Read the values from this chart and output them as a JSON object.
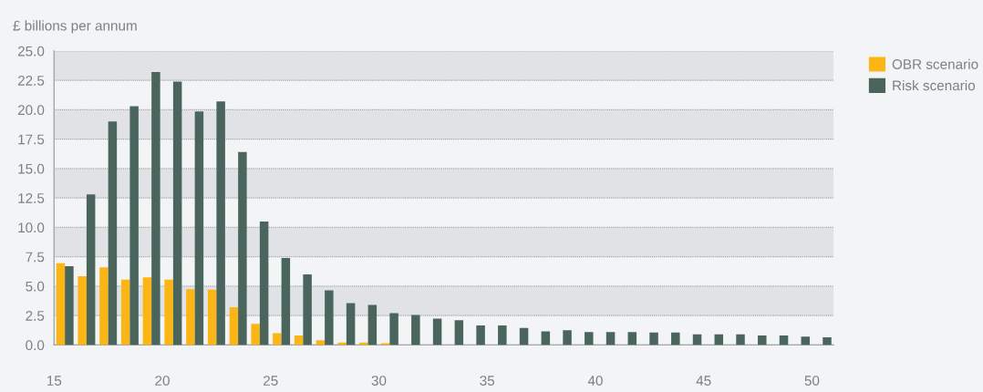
{
  "chart_data": {
    "type": "bar",
    "ylabel": "£ billions per annum",
    "x": [
      15.5,
      16.5,
      17.5,
      18.5,
      19.5,
      20.5,
      21.5,
      22.5,
      23.5,
      24.5,
      25.5,
      26.5,
      27.5,
      28.5,
      29.5,
      30.5,
      31.5,
      32.5,
      33.5,
      34.5,
      35.5,
      36.5,
      37.5,
      38.5,
      39.5,
      40.5,
      41.5,
      42.5,
      43.5,
      44.5,
      45.5,
      46.5,
      47.5,
      48.5,
      49.5,
      50.5
    ],
    "series": [
      {
        "name": "OBR scenario",
        "color": "#fbb616",
        "values": [
          6.95,
          5.85,
          6.6,
          5.55,
          5.75,
          5.55,
          4.75,
          4.7,
          3.2,
          1.8,
          1.0,
          0.8,
          0.4,
          0.2,
          0.2,
          0.15,
          null,
          null,
          null,
          null,
          null,
          null,
          null,
          null,
          null,
          null,
          null,
          null,
          null,
          null,
          null,
          null,
          null,
          null,
          null,
          null
        ]
      },
      {
        "name": "Risk scenario",
        "color": "#4a665c",
        "values": [
          6.7,
          12.8,
          19.0,
          20.3,
          23.2,
          22.4,
          19.85,
          20.7,
          16.4,
          10.5,
          7.4,
          6.0,
          4.65,
          3.55,
          3.4,
          2.7,
          2.55,
          2.25,
          2.1,
          1.65,
          1.65,
          1.45,
          1.15,
          1.25,
          1.1,
          1.1,
          1.1,
          1.05,
          1.05,
          0.9,
          0.9,
          0.9,
          0.8,
          0.8,
          0.7,
          0.65
        ]
      }
    ],
    "xlim": [
      15,
      51
    ],
    "xticks": [
      15,
      20,
      25,
      30,
      35,
      40,
      45,
      50
    ],
    "ylim": [
      0,
      25
    ],
    "yticks": [
      {
        "value": 0,
        "label": "0.0"
      },
      {
        "value": 2.5,
        "label": "2.5"
      },
      {
        "value": 5,
        "label": "5.0"
      },
      {
        "value": 7.5,
        "label": "7.5"
      },
      {
        "value": 10,
        "label": "10.0"
      },
      {
        "value": 12.5,
        "label": "12.5"
      },
      {
        "value": 15,
        "label": "15.0"
      },
      {
        "value": 17.5,
        "label": "17.5"
      },
      {
        "value": 20,
        "label": "20.0"
      },
      {
        "value": 22.5,
        "label": "22.5"
      },
      {
        "value": 25,
        "label": "25.0"
      }
    ],
    "bands": [
      {
        "axis": "y",
        "from": 2.5,
        "to": 5,
        "color": "#e1e2e6"
      },
      {
        "axis": "y",
        "from": 7.5,
        "to": 10,
        "color": "#e1e2e6"
      },
      {
        "axis": "y",
        "from": 12.5,
        "to": 15,
        "color": "#e1e2e6"
      },
      {
        "axis": "y",
        "from": 17.5,
        "to": 20,
        "color": "#e1e2e6"
      },
      {
        "axis": "y",
        "from": 22.5,
        "to": 25,
        "color": "#e1e2e6"
      }
    ],
    "grid": "y",
    "legend": "top right"
  }
}
